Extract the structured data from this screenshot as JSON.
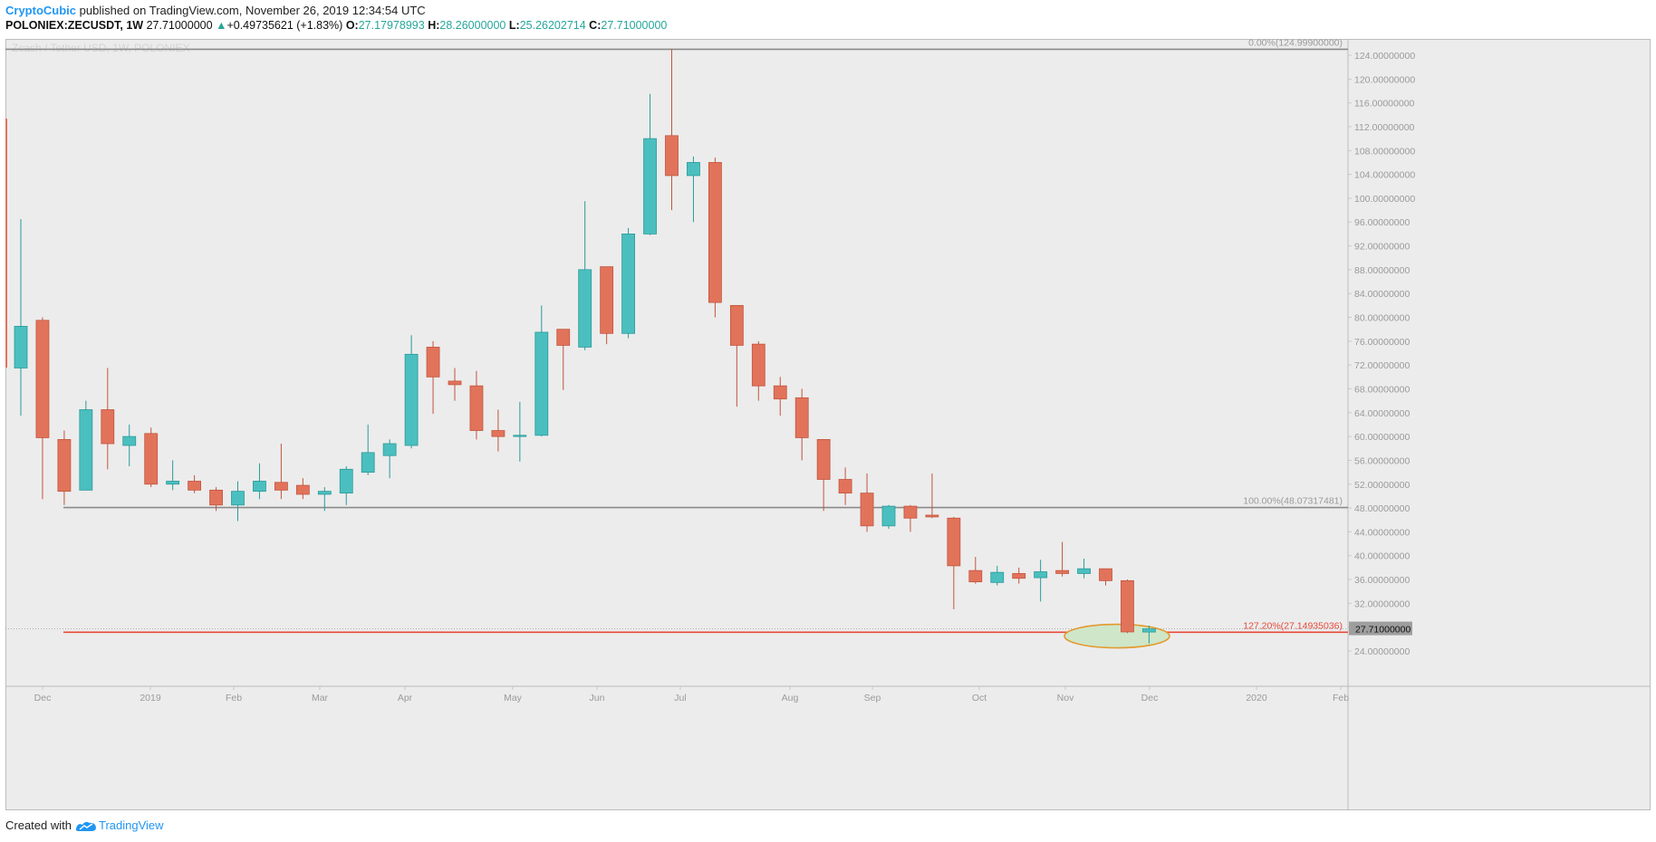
{
  "header": {
    "author": "CryptoCubic",
    "published_text": "published on TradingView.com, November 26, 2019 12:34:54 UTC",
    "symbol": "POLONIEX:ZECUSDT, 1W",
    "last_price": "27.71000000",
    "change_arrow": "▲",
    "change": "+0.49735621 (+1.83%)",
    "o_label": "O:",
    "o_value": "27.17978993",
    "h_label": "H:",
    "h_value": "28.26000000",
    "l_label": "L:",
    "l_value": "25.26202714",
    "c_label": "C:",
    "c_value": "27.71000000"
  },
  "footer": {
    "created_with": "Created with",
    "brand": "TradingView"
  },
  "colors": {
    "up": "#4bbfbf",
    "down": "#e2735b",
    "up_border": "#2a9a9a",
    "down_border": "#c2553d",
    "fib_line": "#8a8a8a",
    "support_line": "#e84a3a",
    "highlight_fill": "#cfe6c9",
    "highlight_stroke": "#e39a2e",
    "background": "#ececec"
  },
  "chart_data": {
    "type": "candlestick",
    "title": "Zcash / Tether USD, 1W, POLONIEX",
    "y_axis_labels": [
      "24.00000000",
      "28.00000000",
      "32.00000000",
      "36.00000000",
      "40.00000000",
      "44.00000000",
      "48.00000000",
      "52.00000000",
      "56.00000000",
      "60.00000000",
      "64.00000000",
      "68.00000000",
      "72.00000000",
      "76.00000000",
      "80.00000000",
      "84.00000000",
      "88.00000000",
      "92.00000000",
      "96.00000000",
      "100.00000000",
      "104.00000000",
      "108.00000000",
      "112.00000000",
      "116.00000000",
      "120.00000000",
      "124.00000000"
    ],
    "ylim": [
      20.5,
      125.5
    ],
    "x_axis_labels": [
      "Dec",
      "2019",
      "Feb",
      "Mar",
      "Apr",
      "May",
      "Jun",
      "Jul",
      "Aug",
      "Sep",
      "Oct",
      "Nov",
      "Dec",
      "2020",
      "Feb"
    ],
    "current_price_label": "27.71000000",
    "fib_levels": [
      {
        "label": "0.00%(124.99900000)",
        "value": 124.999
      },
      {
        "label": "100.00%(48.07317481)",
        "value": 48.073
      },
      {
        "label": "127.20%(27.14935036)",
        "value": 27.149
      }
    ],
    "candles": [
      {
        "o": 71.5,
        "h": 96.5,
        "l": 63.5,
        "c": 78.5
      },
      {
        "o": 79.5,
        "h": 80.0,
        "l": 49.5,
        "c": 59.8
      },
      {
        "o": 59.5,
        "h": 61.0,
        "l": 48.5,
        "c": 50.8
      },
      {
        "o": 51.0,
        "h": 66.0,
        "l": 51.0,
        "c": 64.5
      },
      {
        "o": 64.5,
        "h": 71.5,
        "l": 54.5,
        "c": 58.8
      },
      {
        "o": 58.5,
        "h": 62.0,
        "l": 55.0,
        "c": 60.0
      },
      {
        "o": 60.5,
        "h": 61.5,
        "l": 51.5,
        "c": 52.0
      },
      {
        "o": 52.0,
        "h": 56.0,
        "l": 51.0,
        "c": 52.5
      },
      {
        "o": 52.5,
        "h": 53.5,
        "l": 50.5,
        "c": 51.0
      },
      {
        "o": 51.0,
        "h": 51.5,
        "l": 47.5,
        "c": 48.5
      },
      {
        "o": 48.5,
        "h": 52.5,
        "l": 45.8,
        "c": 50.8
      },
      {
        "o": 50.8,
        "h": 55.5,
        "l": 49.5,
        "c": 52.5
      },
      {
        "o": 52.3,
        "h": 58.8,
        "l": 49.5,
        "c": 51.0
      },
      {
        "o": 51.8,
        "h": 53.0,
        "l": 49.5,
        "c": 50.3
      },
      {
        "o": 50.3,
        "h": 51.5,
        "l": 47.5,
        "c": 50.8
      },
      {
        "o": 50.5,
        "h": 55.0,
        "l": 48.5,
        "c": 54.5
      },
      {
        "o": 54.0,
        "h": 62.0,
        "l": 53.5,
        "c": 57.3
      },
      {
        "o": 56.8,
        "h": 59.5,
        "l": 53.0,
        "c": 58.8
      },
      {
        "o": 58.5,
        "h": 77.0,
        "l": 58.0,
        "c": 73.8
      },
      {
        "o": 75.0,
        "h": 76.0,
        "l": 63.8,
        "c": 70.0
      },
      {
        "o": 69.3,
        "h": 71.5,
        "l": 66.0,
        "c": 68.7
      },
      {
        "o": 68.5,
        "h": 71.0,
        "l": 59.5,
        "c": 61.0
      },
      {
        "o": 61.0,
        "h": 64.5,
        "l": 57.5,
        "c": 60.0
      },
      {
        "o": 60.0,
        "h": 65.8,
        "l": 55.8,
        "c": 60.2
      },
      {
        "o": 60.2,
        "h": 82.0,
        "l": 60.0,
        "c": 77.5
      },
      {
        "o": 78.0,
        "h": 78.0,
        "l": 67.8,
        "c": 75.3
      },
      {
        "o": 75.0,
        "h": 99.5,
        "l": 74.5,
        "c": 88.0
      },
      {
        "o": 88.5,
        "h": 88.5,
        "l": 75.5,
        "c": 77.3
      },
      {
        "o": 77.3,
        "h": 95.0,
        "l": 76.5,
        "c": 94.0
      },
      {
        "o": 94.0,
        "h": 117.5,
        "l": 93.8,
        "c": 110.0
      },
      {
        "o": 110.5,
        "h": 124.999,
        "l": 98.0,
        "c": 103.8
      },
      {
        "o": 103.8,
        "h": 107.0,
        "l": 96.0,
        "c": 106.0
      },
      {
        "o": 106.0,
        "h": 106.8,
        "l": 80.0,
        "c": 82.5
      },
      {
        "o": 82.0,
        "h": 82.0,
        "l": 65.0,
        "c": 75.3
      },
      {
        "o": 75.5,
        "h": 76.0,
        "l": 66.0,
        "c": 68.5
      },
      {
        "o": 68.5,
        "h": 70.0,
        "l": 63.5,
        "c": 66.3
      },
      {
        "o": 66.5,
        "h": 68.0,
        "l": 56.0,
        "c": 59.8
      },
      {
        "o": 59.5,
        "h": 59.5,
        "l": 47.5,
        "c": 52.8
      },
      {
        "o": 52.8,
        "h": 54.8,
        "l": 48.5,
        "c": 50.5
      },
      {
        "o": 50.5,
        "h": 53.8,
        "l": 44.0,
        "c": 45.0
      },
      {
        "o": 45.0,
        "h": 48.5,
        "l": 44.5,
        "c": 48.3
      },
      {
        "o": 48.3,
        "h": 48.5,
        "l": 44.0,
        "c": 46.3
      },
      {
        "o": 46.8,
        "h": 53.8,
        "l": 46.3,
        "c": 46.5
      },
      {
        "o": 46.3,
        "h": 46.5,
        "l": 31.0,
        "c": 38.3
      },
      {
        "o": 37.5,
        "h": 39.8,
        "l": 35.3,
        "c": 35.6
      },
      {
        "o": 35.5,
        "h": 38.3,
        "l": 35.0,
        "c": 37.2
      },
      {
        "o": 37.0,
        "h": 38.0,
        "l": 35.3,
        "c": 36.2
      },
      {
        "o": 36.3,
        "h": 39.3,
        "l": 32.3,
        "c": 37.3
      },
      {
        "o": 37.5,
        "h": 42.3,
        "l": 36.5,
        "c": 37.0
      },
      {
        "o": 37.0,
        "h": 39.5,
        "l": 36.2,
        "c": 37.8
      },
      {
        "o": 37.8,
        "h": 37.8,
        "l": 35.0,
        "c": 35.8
      },
      {
        "o": 35.8,
        "h": 36.0,
        "l": 27.0,
        "c": 27.2
      },
      {
        "o": 27.18,
        "h": 28.26,
        "l": 25.26,
        "c": 27.71
      }
    ]
  }
}
